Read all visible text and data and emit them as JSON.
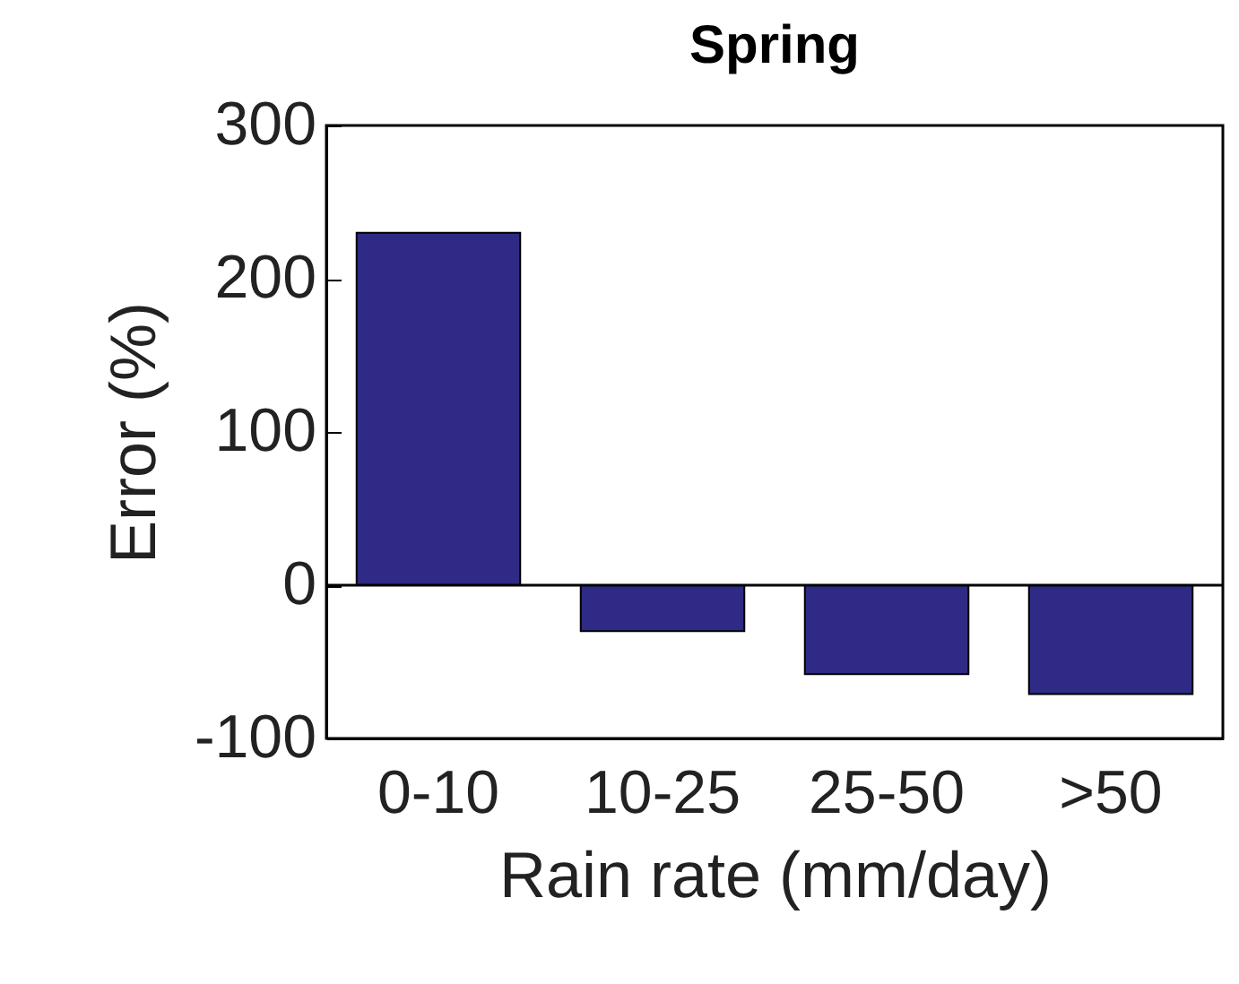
{
  "chart_data": {
    "type": "bar",
    "title": "Spring",
    "xlabel": "Rain rate (mm/day)",
    "ylabel": "Error (%)",
    "categories": [
      "0-10",
      "10-25",
      "25-50",
      ">50"
    ],
    "values": [
      230,
      -30,
      -58,
      -71
    ],
    "color": "#2e2a85",
    "ylim": [
      -100,
      300
    ],
    "yticks": [
      -100,
      0,
      100,
      200,
      300
    ],
    "grid": false,
    "ref_lines": [
      {
        "axis": "y",
        "value": 0,
        "color": "#000000"
      }
    ]
  }
}
